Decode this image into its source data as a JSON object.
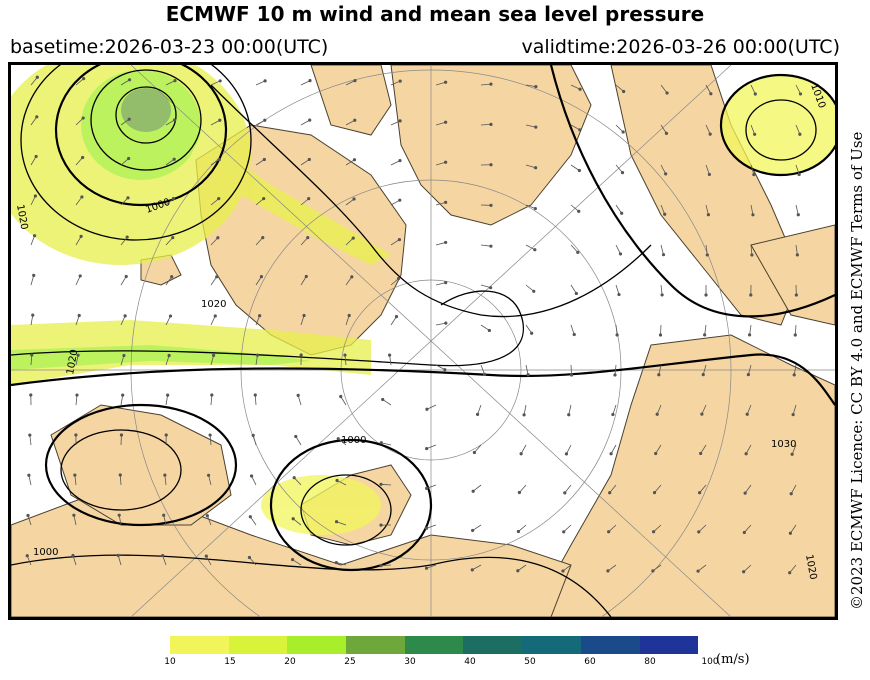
{
  "header": {
    "title": "ECMWF 10 m wind and mean sea level pressure",
    "basetime": "basetime:2026-03-23 00:00(UTC)",
    "validtime": "validtime:2026-03-26 00:00(UTC)"
  },
  "licence": "©2023 ECMWF Licence: CC BY 4.0 and ECMWF Terms of Use",
  "colors": {
    "land": "#f5d6a3",
    "sea": "#ffffff",
    "coast": "#4a4030",
    "isobar": "#000000",
    "wind_arrow": "#555555",
    "graticule": "#888888"
  },
  "isobar_labels": [
    "1020",
    "1000",
    "1020",
    "1020",
    "1000",
    "1030",
    "1000",
    "1020",
    "1010"
  ],
  "legend": {
    "unit": "(m/s)",
    "ticks": [
      "10",
      "15",
      "20",
      "25",
      "30",
      "40",
      "50",
      "60",
      "80",
      "100"
    ],
    "colors": [
      "#f2f55a",
      "#d9f23a",
      "#a8ee2a",
      "#6fa83a",
      "#2e8a4a",
      "#1c6e62",
      "#156a7a",
      "#1a4a8a",
      "#1f3498",
      "#2a2ab0"
    ]
  }
}
